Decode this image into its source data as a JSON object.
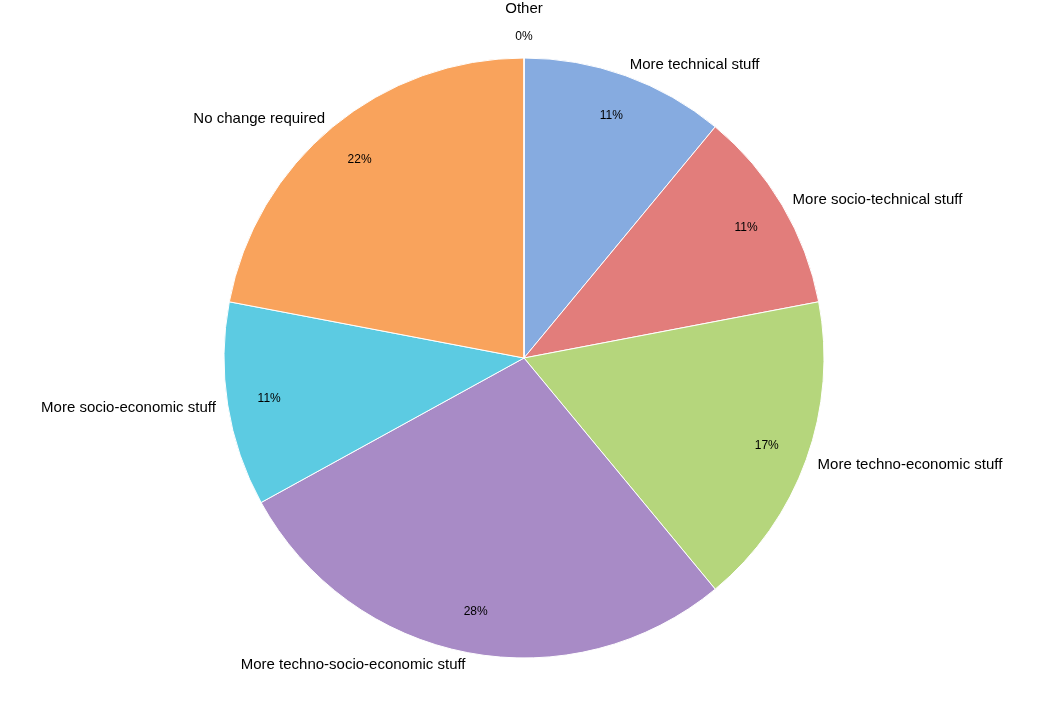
{
  "chart_data": {
    "type": "pie",
    "categories": [
      "More technical stuff",
      "More socio-technical stuff",
      "More techno-economic stuff",
      "More techno-socio-economic stuff",
      "More socio-economic stuff",
      "No change required",
      "Other"
    ],
    "values": [
      11,
      11,
      17,
      28,
      11,
      22,
      0
    ],
    "value_labels": [
      "11%",
      "11%",
      "17%",
      "28%",
      "11%",
      "22%",
      "0%"
    ],
    "colors": [
      "#86abe0",
      "#e27d7b",
      "#b5d67c",
      "#a88bc6",
      "#5ccbe2",
      "#f9a35c",
      "#8aa0c8"
    ]
  }
}
